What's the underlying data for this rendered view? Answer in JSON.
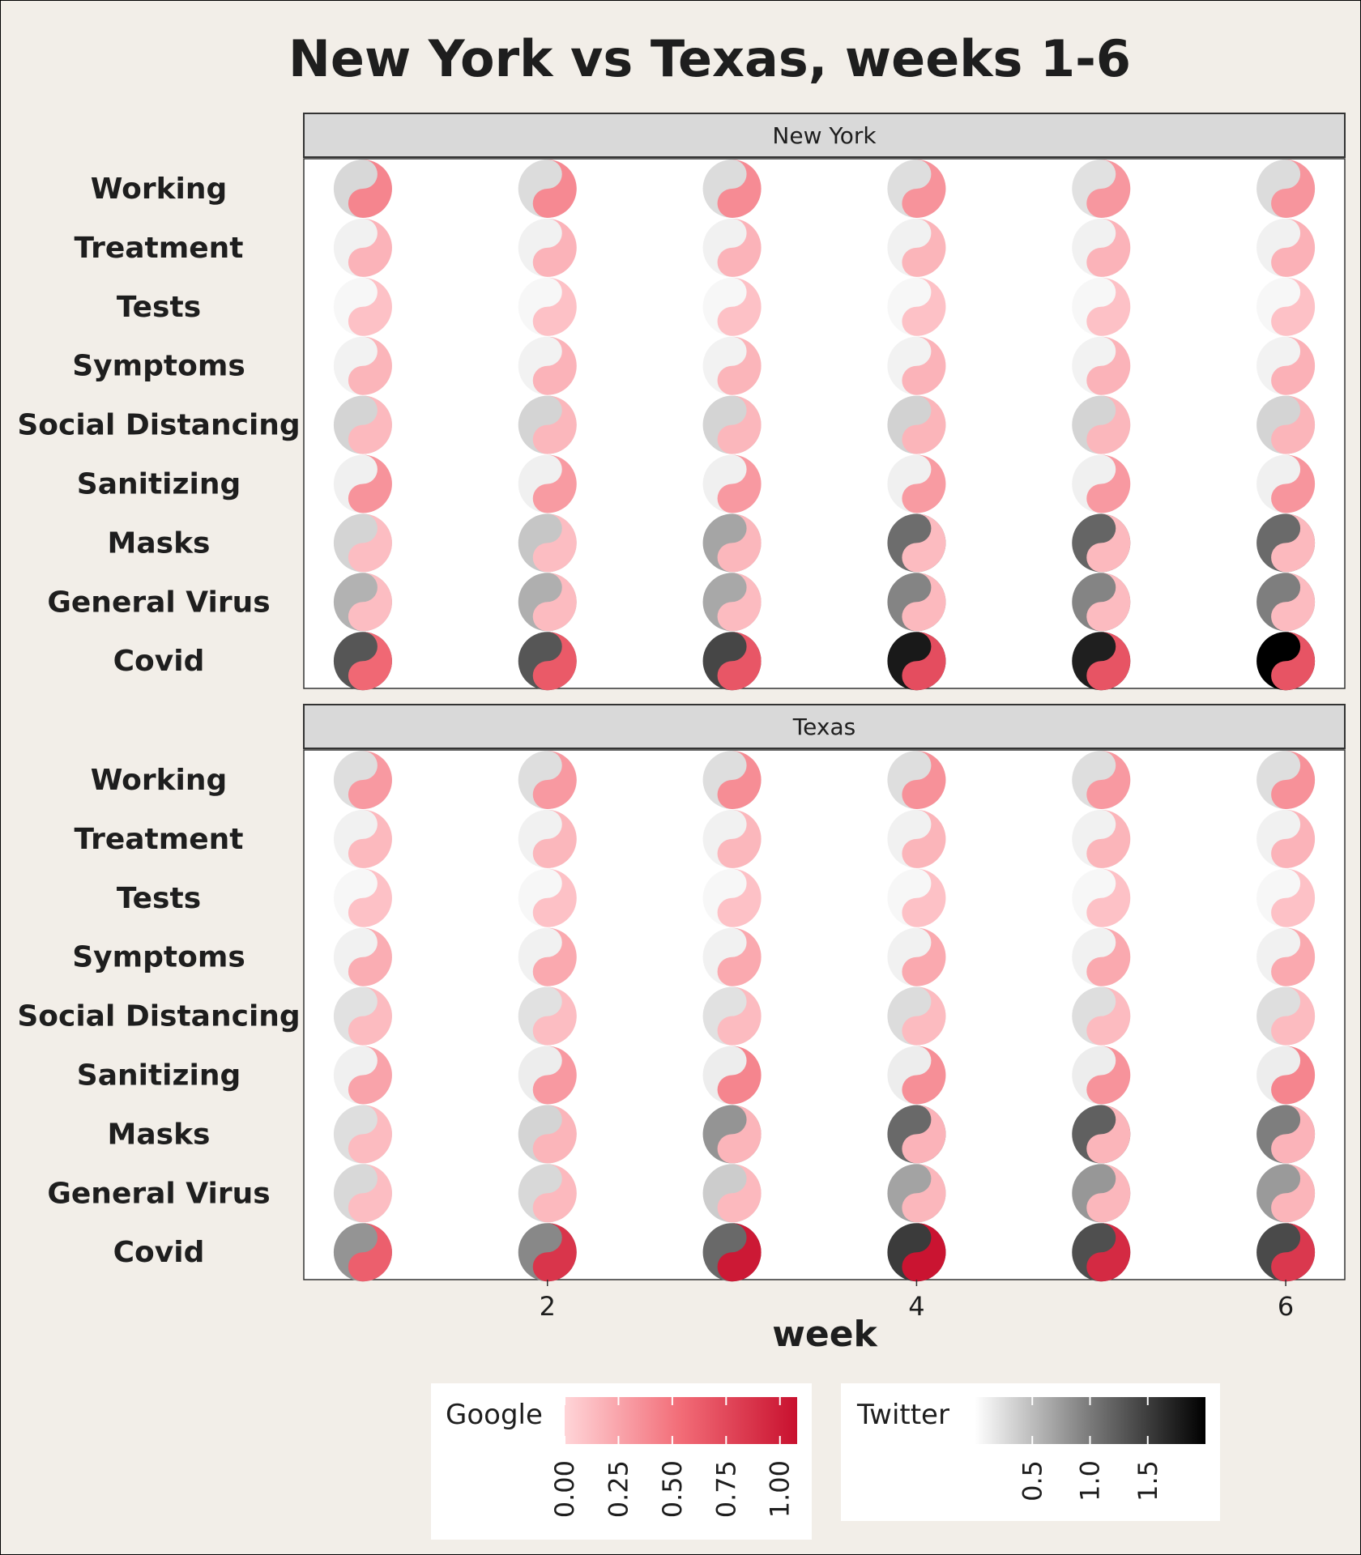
{
  "chart_data": {
    "type": "yin-yang glyph matrix",
    "title": "New York vs Texas, weeks 1-6",
    "xlabel": "week",
    "x": [
      1,
      2,
      3,
      4,
      5,
      6
    ],
    "x_ticks": [
      2,
      4,
      6
    ],
    "categories": [
      "Working",
      "Treatment",
      "Tests",
      "Symptoms",
      "Social Distancing",
      "Sanitizing",
      "Masks",
      "General Virus",
      "Covid"
    ],
    "panels": [
      {
        "name": "New York",
        "google": [
          [
            0.4,
            0.38,
            0.37,
            0.33,
            0.31,
            0.32
          ],
          [
            0.17,
            0.17,
            0.17,
            0.16,
            0.17,
            0.18
          ],
          [
            0.1,
            0.1,
            0.1,
            0.1,
            0.1,
            0.1
          ],
          [
            0.16,
            0.17,
            0.16,
            0.17,
            0.17,
            0.18
          ],
          [
            0.14,
            0.15,
            0.15,
            0.16,
            0.15,
            0.16
          ],
          [
            0.33,
            0.29,
            0.3,
            0.29,
            0.3,
            0.32
          ],
          [
            0.12,
            0.12,
            0.15,
            0.13,
            0.14,
            0.14
          ],
          [
            0.12,
            0.13,
            0.13,
            0.14,
            0.13,
            0.13
          ],
          [
            0.55,
            0.63,
            0.65,
            0.7,
            0.66,
            0.66
          ]
        ],
        "twitter": [
          [
            0.25,
            0.22,
            0.22,
            0.2,
            0.18,
            0.22
          ],
          [
            0.05,
            0.05,
            0.05,
            0.05,
            0.05,
            0.05
          ],
          [
            0.0,
            0.0,
            0.0,
            0.0,
            0.0,
            0.0
          ],
          [
            0.04,
            0.04,
            0.04,
            0.04,
            0.04,
            0.04
          ],
          [
            0.28,
            0.28,
            0.28,
            0.3,
            0.28,
            0.28
          ],
          [
            0.06,
            0.06,
            0.06,
            0.06,
            0.06,
            0.06
          ],
          [
            0.28,
            0.4,
            0.66,
            1.12,
            1.18,
            1.14
          ],
          [
            0.56,
            0.58,
            0.64,
            0.93,
            0.93,
            0.98
          ],
          [
            1.3,
            1.3,
            1.43,
            1.8,
            1.75,
            2.0
          ]
        ]
      },
      {
        "name": "Texas",
        "google": [
          [
            0.3,
            0.3,
            0.36,
            0.34,
            0.3,
            0.34
          ],
          [
            0.14,
            0.15,
            0.15,
            0.16,
            0.16,
            0.17
          ],
          [
            0.1,
            0.1,
            0.1,
            0.1,
            0.1,
            0.1
          ],
          [
            0.2,
            0.22,
            0.22,
            0.22,
            0.22,
            0.22
          ],
          [
            0.13,
            0.12,
            0.13,
            0.13,
            0.13,
            0.13
          ],
          [
            0.25,
            0.3,
            0.4,
            0.35,
            0.33,
            0.4
          ],
          [
            0.13,
            0.16,
            0.16,
            0.17,
            0.16,
            0.17
          ],
          [
            0.12,
            0.14,
            0.14,
            0.15,
            0.15,
            0.16
          ],
          [
            0.6,
            0.84,
            1.0,
            1.03,
            0.9,
            0.82
          ]
        ],
        "twitter": [
          [
            0.2,
            0.2,
            0.2,
            0.2,
            0.2,
            0.2
          ],
          [
            0.05,
            0.05,
            0.05,
            0.05,
            0.05,
            0.05
          ],
          [
            0.0,
            0.0,
            0.0,
            0.0,
            0.0,
            0.0
          ],
          [
            0.05,
            0.05,
            0.05,
            0.05,
            0.05,
            0.05
          ],
          [
            0.18,
            0.18,
            0.18,
            0.22,
            0.2,
            0.2
          ],
          [
            0.06,
            0.08,
            0.08,
            0.08,
            0.08,
            0.08
          ],
          [
            0.2,
            0.28,
            0.8,
            1.15,
            1.22,
            0.98
          ],
          [
            0.25,
            0.25,
            0.35,
            0.68,
            0.78,
            0.75
          ],
          [
            0.8,
            0.9,
            1.15,
            1.52,
            1.36,
            1.4
          ]
        ]
      }
    ],
    "legend": [
      {
        "title": "Google",
        "range": [
          0,
          1.08
        ],
        "ticks": [
          "0.00",
          "0.25",
          "0.50",
          "0.75",
          "1.00"
        ],
        "tick_values": [
          0,
          0.25,
          0.5,
          0.75,
          1.0
        ],
        "colors": [
          "#ffd5d8",
          "#f26c77",
          "#c8102e"
        ]
      },
      {
        "title": "Twitter",
        "range": [
          0,
          2.0
        ],
        "ticks": [
          "0.5",
          "1.0",
          "1.5"
        ],
        "tick_values": [
          0.5,
          1.0,
          1.5
        ],
        "colors": [
          "#ffffff",
          "#7a7a7a",
          "#000000"
        ]
      }
    ],
    "legend_placement": "bottom",
    "grid": false
  },
  "colors": {
    "background": "#f2eee8",
    "panel": "#ffffff",
    "strip": "#d9d9d9",
    "google_low": "#ffd5d8",
    "google_mid": "#f26c77",
    "google_high": "#c8102e",
    "twitter_low": "#f7f7f7",
    "twitter_high": "#000000"
  }
}
